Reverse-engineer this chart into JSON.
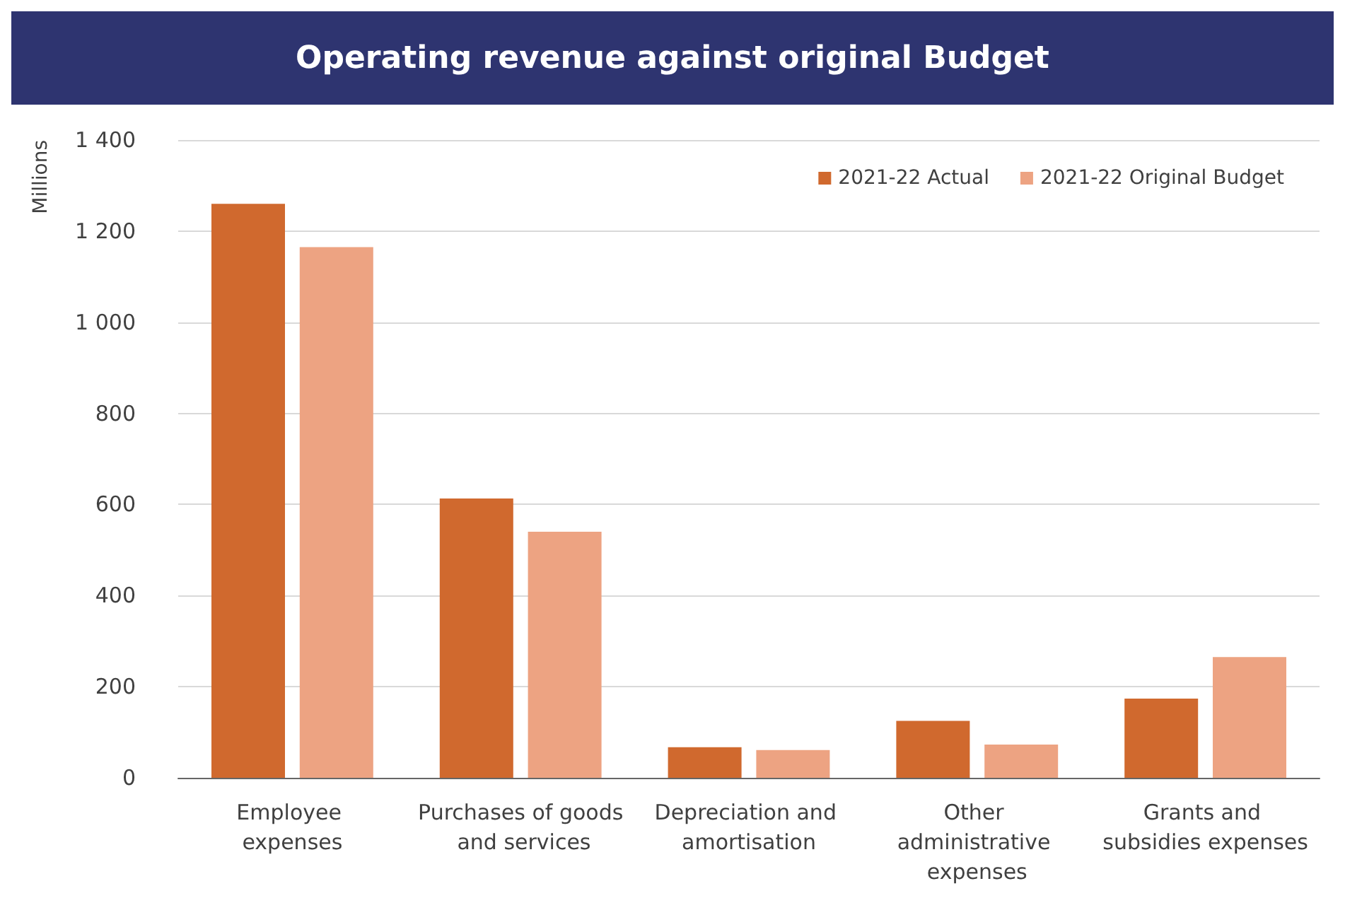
{
  "chart_data": {
    "type": "bar",
    "title": "Operating revenue against original Budget",
    "ylabel": "Millions",
    "categories": [
      "Employee expenses",
      "Purchases of goods and services",
      "Depreciation and amortisation",
      "Other administrative expenses",
      "Grants and subsidies expenses"
    ],
    "series": [
      {
        "name": "2021-22 Actual",
        "color": "#d0692e",
        "values": [
          1260,
          613,
          67,
          125,
          174
        ]
      },
      {
        "name": "2021-22 Original Budget",
        "color": "#eda382",
        "values": [
          1165,
          540,
          61,
          73,
          265
        ]
      }
    ],
    "ylim": [
      0,
      1400
    ],
    "yticks": [
      0,
      200,
      400,
      600,
      800,
      {
        "value": 1000,
        "label": "1 000"
      },
      {
        "value": 1200,
        "label": "1 200"
      },
      {
        "value": 1400,
        "label": "1 400"
      }
    ],
    "grid": "y",
    "legend": "top right"
  }
}
